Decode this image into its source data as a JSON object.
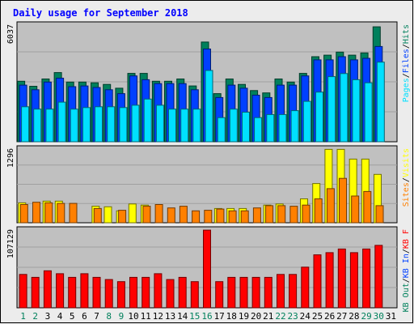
{
  "chart_data": {
    "type": "bar",
    "title": "Daily usage for September 2018",
    "categories": [
      "1",
      "2",
      "3",
      "4",
      "5",
      "6",
      "7",
      "8",
      "9",
      "10",
      "11",
      "12",
      "13",
      "14",
      "15",
      "16",
      "17",
      "18",
      "19",
      "20",
      "21",
      "22",
      "23",
      "24",
      "25",
      "26",
      "27",
      "28",
      "29",
      "30",
      "31"
    ],
    "weekend_days": [
      "1",
      "2",
      "8",
      "9",
      "15",
      "16",
      "22",
      "23",
      "29",
      "30"
    ],
    "colors": {
      "background": "#c0c0c0",
      "frame": "#ececec",
      "title": "#0000ff",
      "hits": "#00805c",
      "files": "#0040ff",
      "pages": "#00e0ff",
      "visits": "#ffff00",
      "sites": "#ff8000",
      "kbytes": "#ff0000",
      "weekday_label": "#000000",
      "weekend_label": "#00805c"
    },
    "panels": [
      {
        "name": "hits-files-pages",
        "max_label": "6037",
        "ylim": [
          0,
          6037
        ],
        "axis_labels": [
          {
            "text": "Hits",
            "color": "#00805c"
          },
          {
            "text": "/",
            "color": "#000000"
          },
          {
            "text": "Files",
            "color": "#0040ff"
          },
          {
            "text": "/",
            "color": "#000000"
          },
          {
            "text": "Pages",
            "color": "#00e0ff"
          }
        ],
        "series": [
          {
            "name": "Hits",
            "color": "#00805c",
            "values": [
              3130,
              2870,
              3250,
              3580,
              3090,
              3090,
              3050,
              2970,
              2770,
              3540,
              3540,
              3130,
              3130,
              3250,
              2890,
              5160,
              2490,
              3250,
              2970,
              2650,
              2530,
              3250,
              3090,
              3540,
              4400,
              4480,
              4640,
              4480,
              4600,
              5950,
              0
            ]
          },
          {
            "name": "Files",
            "color": "#0040ff",
            "values": [
              2930,
              2690,
              3090,
              3290,
              2850,
              2890,
              2810,
              2690,
              2490,
              3410,
              3210,
              3010,
              3010,
              3010,
              2690,
              4800,
              2290,
              2930,
              2770,
              2410,
              2290,
              2930,
              2930,
              3410,
              4240,
              4240,
              4400,
              4240,
              4320,
              4930,
              0
            ]
          },
          {
            "name": "Pages",
            "color": "#00e0ff",
            "values": [
              1810,
              1690,
              1690,
              2050,
              1690,
              1770,
              1810,
              1810,
              1770,
              1890,
              2210,
              1890,
              1690,
              1690,
              1690,
              3690,
              1250,
              1690,
              1530,
              1250,
              1410,
              1410,
              1610,
              2090,
              2570,
              3370,
              3530,
              3210,
              3050,
              4120,
              0
            ]
          }
        ]
      },
      {
        "name": "visits-sites",
        "max_label": "1296",
        "ylim": [
          0,
          1296
        ],
        "axis_labels": [
          {
            "text": "Visits",
            "color": "#ffff00"
          },
          {
            "text": "/",
            "color": "#000000"
          },
          {
            "text": "Sites",
            "color": "#ff8000"
          }
        ],
        "series": [
          {
            "name": "Visits",
            "color": "#ffff00",
            "values": [
              350,
              0,
              380,
              380,
              0,
              0,
              290,
              280,
              210,
              330,
              310,
              0,
              0,
              0,
              0,
              0,
              250,
              250,
              250,
              0,
              310,
              330,
              0,
              420,
              690,
              1290,
              1290,
              1120,
              1120,
              850,
              0
            ]
          },
          {
            "name": "Sites",
            "color": "#ff8000",
            "values": [
              320,
              360,
              350,
              340,
              340,
              0,
              250,
              0,
              220,
              0,
              290,
              320,
              260,
              290,
              210,
              220,
              240,
              210,
              210,
              260,
              300,
              300,
              290,
              310,
              420,
              600,
              780,
              470,
              550,
              300,
              0
            ]
          }
        ]
      },
      {
        "name": "kbytes",
        "max_label": "107129",
        "ylim": [
          0,
          107129
        ],
        "axis_labels": [
          {
            "text": "KB F",
            "color": "#ff0000"
          },
          {
            "text": "/",
            "color": "#000000"
          },
          {
            "text": "KB In",
            "color": "#0040ff"
          },
          {
            "text": "/",
            "color": "#000000"
          },
          {
            "text": "KB Out",
            "color": "#00805c"
          }
        ],
        "series": [
          {
            "name": "KB F",
            "color": "#ff0000",
            "values": [
              46000,
              42000,
              51000,
              47000,
              42000,
              47000,
              42000,
              39000,
              36000,
              42000,
              42000,
              47000,
              39000,
              42000,
              36000,
              107000,
              36000,
              42000,
              42000,
              42000,
              42000,
              46000,
              46000,
              56000,
              73000,
              76000,
              81000,
              76000,
              81000,
              86000,
              0
            ]
          }
        ]
      }
    ]
  }
}
